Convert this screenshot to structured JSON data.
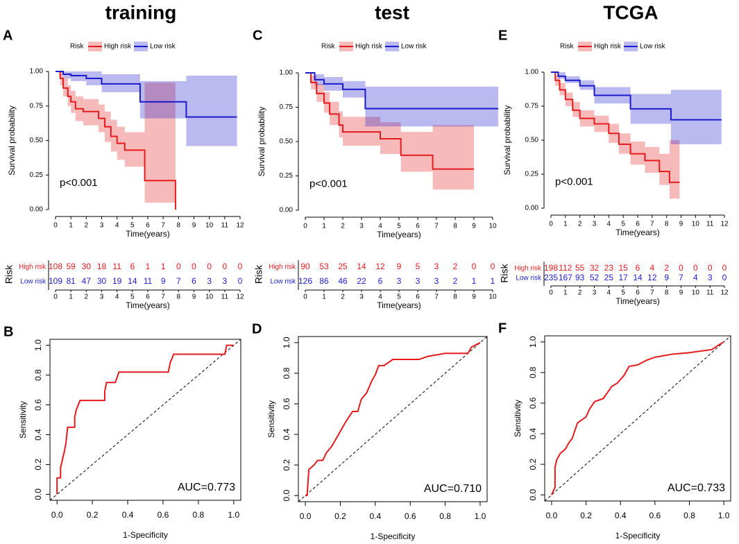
{
  "chart_data": [
    {
      "type": "km",
      "panel": "A",
      "title": "training",
      "legend_title": "Risk",
      "annotation": "p<0.001",
      "xlabel": "Time(years)",
      "ylabel": "Survival probability",
      "xlim": [
        0,
        12
      ],
      "ylim": [
        0,
        1
      ],
      "xticks": [
        0,
        1,
        2,
        3,
        4,
        5,
        6,
        7,
        8,
        9,
        10,
        11,
        12
      ],
      "yticks": [
        {
          "value": 0,
          "label": "0.00"
        },
        0.25,
        {
          "value": 0.5,
          "label": "0.50"
        },
        0.75,
        {
          "value": 1,
          "label": "1.00"
        }
      ],
      "series": [
        {
          "name": "High risk",
          "color": "#e41a1c",
          "x": [
            0,
            0.3,
            0.5,
            0.8,
            1,
            1.3,
            1.8,
            2.8,
            3.2,
            3.6,
            4,
            4.5,
            5.8,
            7.8
          ],
          "values": [
            1,
            0.95,
            0.88,
            0.82,
            0.78,
            0.73,
            0.71,
            0.66,
            0.6,
            0.53,
            0.48,
            0.43,
            0.21,
            0
          ],
          "lower": [
            1,
            0.9,
            0.82,
            0.75,
            0.7,
            0.64,
            0.61,
            0.56,
            0.49,
            0.42,
            0.36,
            0.31,
            0.05,
            0
          ],
          "upper": [
            1,
            1,
            0.95,
            0.9,
            0.86,
            0.82,
            0.8,
            0.76,
            0.71,
            0.65,
            0.6,
            0.56,
            0.92,
            0.92
          ]
        },
        {
          "name": "Low risk",
          "color": "#1a1acd",
          "x": [
            0,
            0.5,
            1,
            2,
            3,
            5.5,
            8.5,
            11.8
          ],
          "values": [
            1,
            0.98,
            0.97,
            0.95,
            0.91,
            0.78,
            0.67,
            0.67
          ],
          "lower": [
            1,
            0.95,
            0.93,
            0.9,
            0.85,
            0.66,
            0.46,
            0.46
          ],
          "upper": [
            1,
            1,
            1,
            1,
            0.98,
            0.93,
            0.97,
            0.97
          ]
        }
      ]
    },
    {
      "type": "risk_table",
      "ylabel": "Risk",
      "xlabel": "Time(years)",
      "xlim": [
        0,
        12
      ],
      "categories": [
        0,
        1,
        2,
        3,
        4,
        5,
        6,
        7,
        8,
        9,
        10,
        11,
        12
      ],
      "series": [
        {
          "name": "High risk",
          "color": "#e41a1c",
          "values": [
            108,
            59,
            30,
            18,
            11,
            6,
            1,
            1,
            0,
            0,
            0,
            0,
            0
          ]
        },
        {
          "name": "Low risk",
          "color": "#1a1acd",
          "values": [
            109,
            81,
            47,
            30,
            19,
            14,
            11,
            9,
            7,
            6,
            3,
            3,
            0
          ]
        }
      ]
    },
    {
      "type": "roc",
      "panel": "B",
      "annotation": "AUC=0.773",
      "xlabel": "1-Specificity",
      "ylabel": "Sensitivity",
      "color": "#e41a1c",
      "xlim": [
        -0.04,
        1.04
      ],
      "ylim": [
        -0.04,
        1.04
      ],
      "xticks": [
        {
          "value": 0,
          "label": "0.0"
        },
        0.2,
        0.4,
        0.6,
        0.8,
        {
          "value": 1,
          "label": "1.0"
        }
      ],
      "yticks": [
        {
          "value": 0,
          "label": "0.0"
        },
        0.2,
        0.4,
        0.6,
        0.8,
        {
          "value": 1,
          "label": "1.0"
        }
      ],
      "x": [
        0,
        0,
        0.02,
        0.02,
        0.03,
        0.04,
        0.05,
        0.06,
        0.1,
        0.1,
        0.11,
        0.13,
        0.27,
        0.27,
        0.28,
        0.33,
        0.35,
        0.63,
        0.64,
        0.66,
        0.95,
        0.96,
        1
      ],
      "values": [
        0,
        0.11,
        0.11,
        0.18,
        0.23,
        0.28,
        0.34,
        0.45,
        0.45,
        0.52,
        0.57,
        0.63,
        0.63,
        0.69,
        0.75,
        0.75,
        0.82,
        0.82,
        0.88,
        0.94,
        0.94,
        1,
        1
      ]
    },
    {
      "type": "km",
      "panel": "C",
      "title": "test",
      "legend_title": "Risk",
      "annotation": "p<0.001",
      "xlabel": "Time(years)",
      "ylabel": "Survival probability",
      "xlim": [
        0,
        10
      ],
      "ylim": [
        0,
        1
      ],
      "xticks": [
        0,
        1,
        2,
        3,
        4,
        5,
        6,
        7,
        8,
        9,
        10
      ],
      "yticks": [
        {
          "value": 0,
          "label": "0.00"
        },
        0.25,
        {
          "value": 0.5,
          "label": "0.50"
        },
        0.75,
        {
          "value": 1,
          "label": "1.00"
        }
      ],
      "series": [
        {
          "name": "High risk",
          "color": "#e41a1c",
          "x": [
            0,
            0.3,
            0.6,
            1,
            1.3,
            1.8,
            2,
            3.2,
            4,
            5.1,
            6.8,
            9
          ],
          "values": [
            1,
            0.93,
            0.85,
            0.78,
            0.7,
            0.62,
            0.57,
            0.57,
            0.52,
            0.4,
            0.3,
            0.3
          ],
          "lower": [
            1,
            0.88,
            0.79,
            0.71,
            0.62,
            0.53,
            0.47,
            0.47,
            0.41,
            0.28,
            0.15,
            0.15
          ],
          "upper": [
            1,
            0.98,
            0.92,
            0.86,
            0.79,
            0.72,
            0.68,
            0.68,
            0.64,
            0.57,
            0.62,
            0.62
          ]
        },
        {
          "name": "Low risk",
          "color": "#1a1acd",
          "x": [
            0,
            0.5,
            1,
            2,
            3.2,
            10.3
          ],
          "values": [
            1,
            0.95,
            0.92,
            0.88,
            0.74,
            0.74
          ],
          "lower": [
            1,
            0.91,
            0.87,
            0.82,
            0.61,
            0.61
          ],
          "upper": [
            1,
            0.99,
            0.97,
            0.94,
            0.9,
            0.9
          ]
        }
      ]
    },
    {
      "type": "risk_table",
      "ylabel": "Risk",
      "xlabel": "Time(years)",
      "xlim": [
        0,
        10
      ],
      "categories": [
        0,
        1,
        2,
        3,
        4,
        5,
        6,
        7,
        8,
        9,
        10
      ],
      "series": [
        {
          "name": "High risk",
          "color": "#e41a1c",
          "values": [
            90,
            53,
            25,
            14,
            12,
            9,
            5,
            3,
            2,
            0,
            0
          ]
        },
        {
          "name": "Low risk",
          "color": "#1a1acd",
          "values": [
            126,
            86,
            46,
            22,
            6,
            3,
            3,
            3,
            2,
            1,
            1
          ]
        }
      ]
    },
    {
      "type": "roc",
      "panel": "D",
      "annotation": "AUC=0.710",
      "xlabel": "1-Specificity",
      "ylabel": "Sensitivity",
      "color": "#e41a1c",
      "xlim": [
        -0.04,
        1.04
      ],
      "ylim": [
        -0.04,
        1.04
      ],
      "xticks": [
        {
          "value": 0,
          "label": "0.0"
        },
        0.2,
        0.4,
        0.6,
        0.8,
        {
          "value": 1,
          "label": "1.0"
        }
      ],
      "yticks": [
        {
          "value": 0,
          "label": "0.0"
        },
        0.2,
        0.4,
        0.6,
        0.8,
        {
          "value": 1,
          "label": "1.0"
        }
      ],
      "x": [
        0,
        0.01,
        0.02,
        0.05,
        0.07,
        0.1,
        0.12,
        0.15,
        0.18,
        0.2,
        0.23,
        0.27,
        0.3,
        0.32,
        0.35,
        0.38,
        0.4,
        0.42,
        0.45,
        0.5,
        0.65,
        0.7,
        0.8,
        0.93,
        0.95,
        1
      ],
      "values": [
        0,
        0,
        0.17,
        0.2,
        0.23,
        0.23,
        0.28,
        0.32,
        0.38,
        0.42,
        0.48,
        0.55,
        0.55,
        0.63,
        0.67,
        0.75,
        0.79,
        0.85,
        0.85,
        0.89,
        0.89,
        0.91,
        0.93,
        0.93,
        0.97,
        1
      ]
    },
    {
      "type": "km",
      "panel": "E",
      "title": "TCGA",
      "legend_title": "Risk",
      "annotation": "p<0.001",
      "xlabel": "Time(years)",
      "ylabel": "Survival probability",
      "xlim": [
        0,
        12
      ],
      "ylim": [
        0,
        1
      ],
      "xticks": [
        0,
        1,
        2,
        3,
        4,
        5,
        6,
        7,
        8,
        9,
        10,
        11,
        12
      ],
      "yticks": [
        {
          "value": 0,
          "label": "0.00"
        },
        0.25,
        {
          "value": 0.5,
          "label": "0.50"
        },
        0.75,
        {
          "value": 1,
          "label": "1.00"
        }
      ],
      "series": [
        {
          "name": "High risk",
          "color": "#e41a1c",
          "x": [
            0,
            0.3,
            0.6,
            1,
            1.5,
            2,
            3,
            4,
            4.7,
            5.5,
            6.5,
            7.5,
            8.2,
            8.9
          ],
          "values": [
            1,
            0.94,
            0.87,
            0.8,
            0.72,
            0.66,
            0.62,
            0.55,
            0.47,
            0.4,
            0.35,
            0.27,
            0.19,
            0.19
          ],
          "lower": [
            1,
            0.9,
            0.83,
            0.75,
            0.67,
            0.6,
            0.56,
            0.48,
            0.4,
            0.32,
            0.26,
            0.17,
            0.07,
            0.07
          ],
          "upper": [
            1,
            0.98,
            0.92,
            0.85,
            0.78,
            0.72,
            0.68,
            0.62,
            0.55,
            0.49,
            0.45,
            0.4,
            0.5,
            0.5
          ]
        },
        {
          "name": "Low risk",
          "color": "#1a1acd",
          "x": [
            0,
            0.5,
            1,
            2,
            3,
            5.5,
            8.3,
            11.8
          ],
          "values": [
            1,
            0.97,
            0.94,
            0.9,
            0.83,
            0.73,
            0.65,
            0.65
          ],
          "lower": [
            1,
            0.95,
            0.92,
            0.87,
            0.77,
            0.62,
            0.47,
            0.47
          ],
          "upper": [
            1,
            1,
            0.97,
            0.94,
            0.89,
            0.84,
            0.87,
            0.87
          ]
        }
      ]
    },
    {
      "type": "risk_table",
      "ylabel": "Risk",
      "xlabel": "Time(years)",
      "xlim": [
        0,
        12
      ],
      "categories": [
        0,
        1,
        2,
        3,
        4,
        5,
        6,
        7,
        8,
        9,
        10,
        11,
        12
      ],
      "series": [
        {
          "name": "High risk",
          "color": "#e41a1c",
          "values": [
            198,
            112,
            55,
            32,
            23,
            15,
            6,
            4,
            2,
            0,
            0,
            0,
            0
          ]
        },
        {
          "name": "Low risk",
          "color": "#1a1acd",
          "values": [
            235,
            167,
            93,
            52,
            25,
            17,
            14,
            12,
            9,
            7,
            4,
            3,
            0
          ]
        }
      ]
    },
    {
      "type": "roc",
      "panel": "F",
      "annotation": "AUC=0.733",
      "xlabel": "1-Specificity",
      "ylabel": "Sensitivity",
      "color": "#e41a1c",
      "xlim": [
        -0.04,
        1.04
      ],
      "ylim": [
        -0.04,
        1.04
      ],
      "xticks": [
        {
          "value": 0,
          "label": "0.0"
        },
        0.2,
        0.4,
        0.6,
        0.8,
        {
          "value": 1,
          "label": "1.0"
        }
      ],
      "yticks": [
        {
          "value": 0,
          "label": "0.0"
        },
        0.2,
        0.4,
        0.6,
        0.8,
        {
          "value": 1,
          "label": "1.0"
        }
      ],
      "x": [
        0,
        0.02,
        0.02,
        0.03,
        0.05,
        0.08,
        0.1,
        0.12,
        0.15,
        0.2,
        0.22,
        0.25,
        0.3,
        0.35,
        0.38,
        0.42,
        0.45,
        0.5,
        0.55,
        0.6,
        0.7,
        0.8,
        0.93,
        0.97,
        1
      ],
      "values": [
        0,
        0.05,
        0.18,
        0.23,
        0.27,
        0.3,
        0.34,
        0.37,
        0.47,
        0.51,
        0.56,
        0.61,
        0.63,
        0.71,
        0.73,
        0.78,
        0.84,
        0.85,
        0.88,
        0.9,
        0.92,
        0.93,
        0.95,
        0.98,
        1
      ]
    }
  ]
}
